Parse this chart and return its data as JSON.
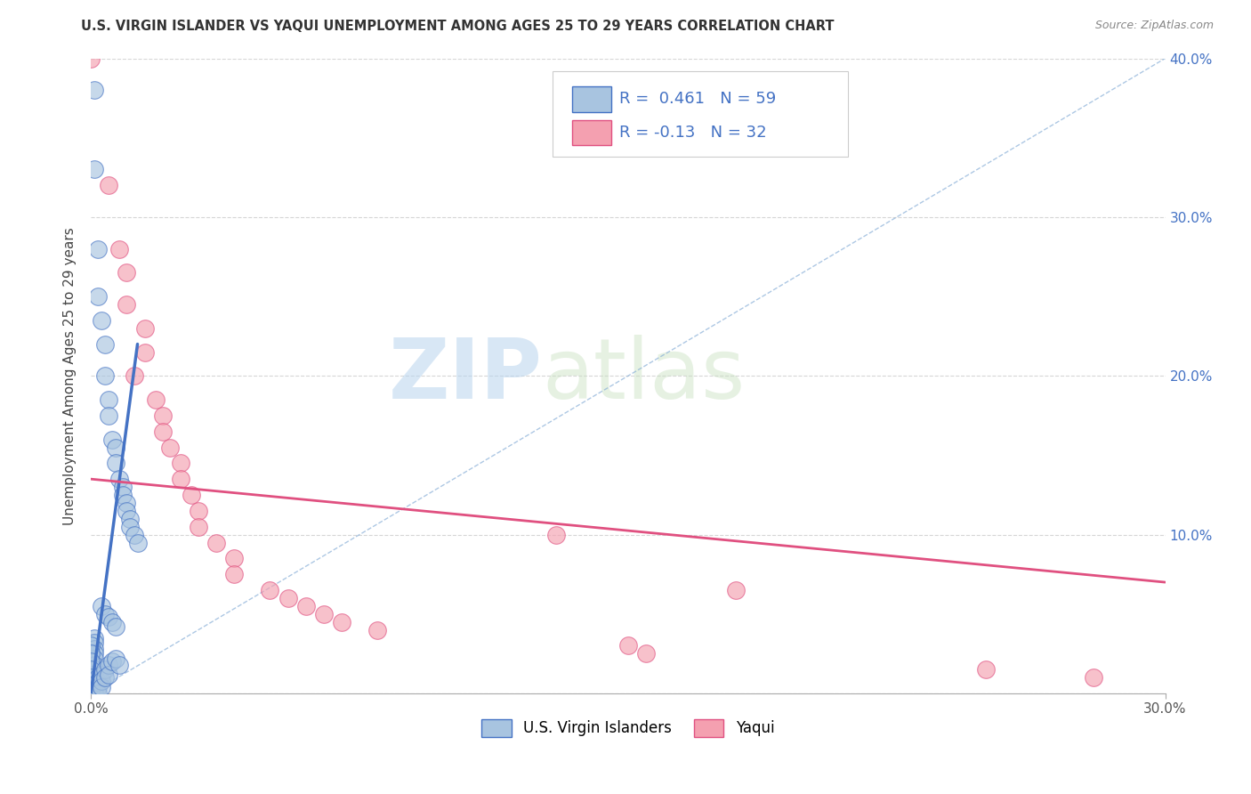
{
  "title": "U.S. VIRGIN ISLANDER VS YAQUI UNEMPLOYMENT AMONG AGES 25 TO 29 YEARS CORRELATION CHART",
  "source": "Source: ZipAtlas.com",
  "ylabel": "Unemployment Among Ages 25 to 29 years",
  "legend_labels": [
    "U.S. Virgin Islanders",
    "Yaqui"
  ],
  "r_blue": 0.461,
  "n_blue": 59,
  "r_pink": -0.13,
  "n_pink": 32,
  "xlim": [
    0.0,
    0.3
  ],
  "ylim": [
    0.0,
    0.4
  ],
  "xtick_positions": [
    0.0,
    0.3
  ],
  "xtick_labels": [
    "0.0%",
    "30.0%"
  ],
  "ytick_positions": [
    0.0,
    0.1,
    0.2,
    0.3,
    0.4
  ],
  "ytick_labels_right": [
    "",
    "10.0%",
    "20.0%",
    "30.0%",
    "40.0%"
  ],
  "color_blue": "#a8c4e0",
  "color_pink": "#f4a0b0",
  "line_blue": "#4472c4",
  "line_pink": "#e05080",
  "watermark_zip": "ZIP",
  "watermark_atlas": "atlas",
  "blue_points": [
    [
      0.001,
      0.38
    ],
    [
      0.001,
      0.33
    ],
    [
      0.002,
      0.28
    ],
    [
      0.002,
      0.25
    ],
    [
      0.003,
      0.235
    ],
    [
      0.004,
      0.22
    ],
    [
      0.004,
      0.2
    ],
    [
      0.005,
      0.185
    ],
    [
      0.005,
      0.175
    ],
    [
      0.006,
      0.16
    ],
    [
      0.007,
      0.155
    ],
    [
      0.007,
      0.145
    ],
    [
      0.008,
      0.135
    ],
    [
      0.009,
      0.13
    ],
    [
      0.009,
      0.125
    ],
    [
      0.01,
      0.12
    ],
    [
      0.01,
      0.115
    ],
    [
      0.011,
      0.11
    ],
    [
      0.011,
      0.105
    ],
    [
      0.012,
      0.1
    ],
    [
      0.013,
      0.095
    ],
    [
      0.003,
      0.055
    ],
    [
      0.004,
      0.05
    ],
    [
      0.005,
      0.048
    ],
    [
      0.006,
      0.045
    ],
    [
      0.007,
      0.042
    ],
    [
      0.001,
      0.035
    ],
    [
      0.001,
      0.032
    ],
    [
      0.001,
      0.028
    ],
    [
      0.001,
      0.025
    ],
    [
      0.001,
      0.022
    ],
    [
      0.001,
      0.018
    ],
    [
      0.001,
      0.015
    ],
    [
      0.001,
      0.012
    ],
    [
      0.001,
      0.009
    ],
    [
      0.001,
      0.006
    ],
    [
      0.001,
      0.003
    ],
    [
      0.001,
      0.0
    ],
    [
      0.0,
      0.03
    ],
    [
      0.0,
      0.025
    ],
    [
      0.0,
      0.02
    ],
    [
      0.0,
      0.015
    ],
    [
      0.0,
      0.01
    ],
    [
      0.0,
      0.005
    ],
    [
      0.0,
      0.0
    ],
    [
      0.002,
      0.01
    ],
    [
      0.002,
      0.007
    ],
    [
      0.002,
      0.004
    ],
    [
      0.002,
      0.0
    ],
    [
      0.003,
      0.012
    ],
    [
      0.003,
      0.008
    ],
    [
      0.003,
      0.004
    ],
    [
      0.004,
      0.015
    ],
    [
      0.004,
      0.01
    ],
    [
      0.005,
      0.018
    ],
    [
      0.005,
      0.012
    ],
    [
      0.006,
      0.02
    ],
    [
      0.007,
      0.022
    ],
    [
      0.008,
      0.018
    ]
  ],
  "pink_points": [
    [
      0.0,
      0.4
    ],
    [
      0.005,
      0.32
    ],
    [
      0.008,
      0.28
    ],
    [
      0.01,
      0.265
    ],
    [
      0.01,
      0.245
    ],
    [
      0.015,
      0.23
    ],
    [
      0.015,
      0.215
    ],
    [
      0.012,
      0.2
    ],
    [
      0.018,
      0.185
    ],
    [
      0.02,
      0.175
    ],
    [
      0.02,
      0.165
    ],
    [
      0.022,
      0.155
    ],
    [
      0.025,
      0.145
    ],
    [
      0.025,
      0.135
    ],
    [
      0.028,
      0.125
    ],
    [
      0.03,
      0.115
    ],
    [
      0.03,
      0.105
    ],
    [
      0.035,
      0.095
    ],
    [
      0.04,
      0.085
    ],
    [
      0.04,
      0.075
    ],
    [
      0.05,
      0.065
    ],
    [
      0.055,
      0.06
    ],
    [
      0.06,
      0.055
    ],
    [
      0.065,
      0.05
    ],
    [
      0.07,
      0.045
    ],
    [
      0.08,
      0.04
    ],
    [
      0.13,
      0.1
    ],
    [
      0.18,
      0.065
    ],
    [
      0.15,
      0.03
    ],
    [
      0.155,
      0.025
    ],
    [
      0.25,
      0.015
    ],
    [
      0.28,
      0.01
    ]
  ],
  "blue_line_x": [
    0.0,
    0.013
  ],
  "blue_line_y": [
    0.0,
    0.22
  ],
  "pink_line_x": [
    0.0,
    0.3
  ],
  "pink_line_y": [
    0.135,
    0.07
  ],
  "diag_line_x": [
    0.0,
    0.3
  ],
  "diag_line_y": [
    0.0,
    0.4
  ]
}
